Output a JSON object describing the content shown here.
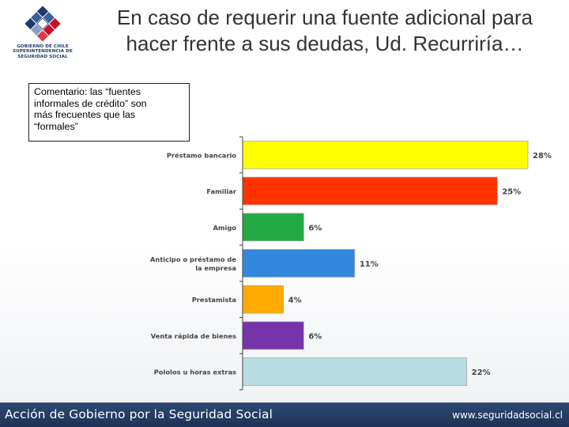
{
  "logo": {
    "line1": "GOBIERNO DE CHILE",
    "line2": "SUPERINTENDENCIA DE",
    "line3": "SEGURIDAD SOCIAL"
  },
  "title": {
    "line1": "En caso de requerir una fuente adicional para",
    "line2": "hacer frente a sus deudas, Ud. Recurriría…"
  },
  "comment": {
    "line1": "Comentario: las “fuentes",
    "line2": "informales de crédito” son",
    "line3": "más frecuentes que las",
    "line4": "“formales”"
  },
  "chart_data": {
    "type": "bar",
    "orientation": "horizontal",
    "categories": [
      [
        "Préstamo bancario"
      ],
      [
        "Familiar"
      ],
      [
        "Amigo"
      ],
      [
        "Anticipo o préstamo de",
        "la empresa"
      ],
      [
        "Prestamista"
      ],
      [
        "Venta rápida de bienes"
      ],
      [
        "Pololos u horas extras"
      ]
    ],
    "values": [
      28,
      25,
      6,
      11,
      4,
      6,
      22
    ],
    "value_labels": [
      "28%",
      "25%",
      "6%",
      "11%",
      "4%",
      "6%",
      "22%"
    ],
    "colors": [
      "#ffff00",
      "#ff3300",
      "#22aa44",
      "#3388dd",
      "#ffaa00",
      "#7733aa",
      "#b8dde3"
    ],
    "title": "",
    "xlabel": "",
    "ylabel": "",
    "xlim": [
      0,
      28
    ],
    "grid": false,
    "legend": "none"
  },
  "footer": {
    "left": "Acción de Gobierno por la Seguridad Social",
    "right": "www.seguridadsocial.cl"
  }
}
